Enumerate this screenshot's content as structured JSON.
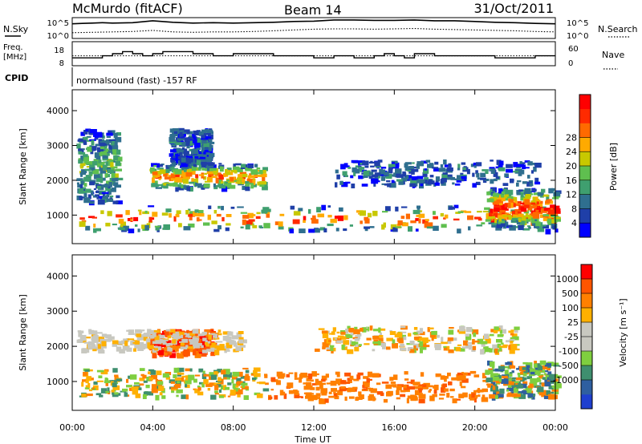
{
  "header": {
    "station": "McMurdo (fitACF)",
    "beam": "Beam 14",
    "date": "31/Oct/2011"
  },
  "left_labels": {
    "nsky": "N.Sky",
    "freq_line1": "Freq.",
    "freq_line2": "[MHz]",
    "cpid": "CPID"
  },
  "right_labels": {
    "nsearch": "N.Search",
    "nave": "Nave"
  },
  "cpid_text": "normalsound (fast) -157 RF",
  "colors": {
    "power": [
      "#0000ff",
      "#1f3fa8",
      "#2f6f8f",
      "#3f9f6f",
      "#5fbf4f",
      "#c8c800",
      "#ffaa00",
      "#ff6a00",
      "#ff2a00",
      "#ff0000"
    ],
    "velocity": [
      "#ff0000",
      "#ff5500",
      "#ff8000",
      "#ffb000",
      "#c8c8c0",
      "#c8c8c0",
      "#7fcf3f",
      "#3f8f6f",
      "#2f5fa0",
      "#1f3fcf"
    ]
  },
  "chart_data": [
    {
      "type": "line",
      "panel": "noise",
      "x_range": [
        0,
        24
      ],
      "left_ticks": [
        "10^5",
        "10^0"
      ],
      "right_ticks": [
        "10^5",
        "10^0"
      ],
      "series": [
        {
          "name": "N.Sky",
          "style": "solid",
          "x": [
            0,
            0.5,
            1,
            1.5,
            2,
            3,
            4,
            5,
            6,
            7,
            8,
            9,
            10,
            11,
            12,
            13,
            14,
            15,
            16,
            17,
            18,
            19,
            20,
            21,
            22,
            23,
            24
          ],
          "y": [
            3.6,
            3.7,
            3.8,
            3.9,
            3.8,
            3.9,
            4.4,
            4.0,
            3.8,
            3.9,
            3.8,
            3.9,
            4.0,
            4.2,
            4.3,
            4.6,
            4.6,
            4.5,
            4.5,
            4.6,
            4.4,
            4.4,
            4.2,
            4.0,
            3.9,
            3.7,
            3.6
          ]
        },
        {
          "name": "N.Search",
          "style": "dotted",
          "x": [
            0,
            1,
            2,
            3,
            4,
            5,
            6,
            7,
            8,
            9,
            10,
            11,
            12,
            13,
            14,
            15,
            16,
            17,
            18,
            19,
            20,
            21,
            22,
            23,
            24
          ],
          "y": [
            1.3,
            1.4,
            1.5,
            1.6,
            1.9,
            1.5,
            1.4,
            1.5,
            1.5,
            1.6,
            1.8,
            2.0,
            2.2,
            2.3,
            2.3,
            2.2,
            2.3,
            2.4,
            2.2,
            2.1,
            2.0,
            1.9,
            1.8,
            1.6,
            1.5
          ]
        }
      ]
    },
    {
      "type": "line",
      "panel": "frequency",
      "x_range": [
        0,
        24
      ],
      "left_ticks": [
        "18",
        "8"
      ],
      "right_ticks": [
        "60",
        "0"
      ],
      "series": [
        {
          "name": "Freq.",
          "style": "solid",
          "x": [
            0,
            1,
            1.5,
            2,
            2.5,
            3,
            3.5,
            4,
            4.5,
            5,
            6,
            7,
            8,
            9,
            10,
            11,
            12,
            13,
            14,
            15,
            15.5,
            16,
            16.5,
            17,
            18,
            19,
            20,
            21,
            22,
            23,
            24
          ],
          "y": [
            11,
            11,
            12,
            13,
            14,
            13,
            12,
            13,
            14,
            14,
            13,
            12,
            13,
            13,
            12,
            12,
            11,
            12,
            11,
            12,
            13,
            12,
            11,
            13,
            12,
            12,
            12,
            11,
            11,
            12,
            12
          ]
        },
        {
          "name": "Nave",
          "style": "dotted",
          "x": [
            0,
            24
          ],
          "y": [
            24,
            24
          ]
        }
      ]
    },
    {
      "type": "heatmap",
      "panel": "power",
      "ylabel": "Slant Range [km]",
      "colorbar_label": "Power [dB]",
      "y_ticks": [
        1000,
        2000,
        3000,
        4000
      ],
      "y_range": [
        180,
        4600
      ],
      "colorbar_ticks": [
        4,
        8,
        12,
        16,
        20,
        24,
        28
      ],
      "colorbar_range": [
        0,
        30
      ],
      "x_range": [
        0,
        24
      ]
    },
    {
      "type": "heatmap",
      "panel": "velocity",
      "ylabel": "Slant Range [km]",
      "colorbar_label": "Velocity [m s⁻¹]",
      "y_ticks": [
        1000,
        2000,
        3000,
        4000
      ],
      "y_range": [
        180,
        4600
      ],
      "colorbar_ticks": [
        "1000",
        "500",
        "100",
        "25",
        "-25",
        "-100",
        "-500",
        "-1000"
      ],
      "x_range": [
        0,
        24
      ],
      "x_ticks": [
        "00:00",
        "04:00",
        "08:00",
        "12:00",
        "16:00",
        "20:00",
        "00:00"
      ],
      "xlabel": "Time UT"
    }
  ]
}
